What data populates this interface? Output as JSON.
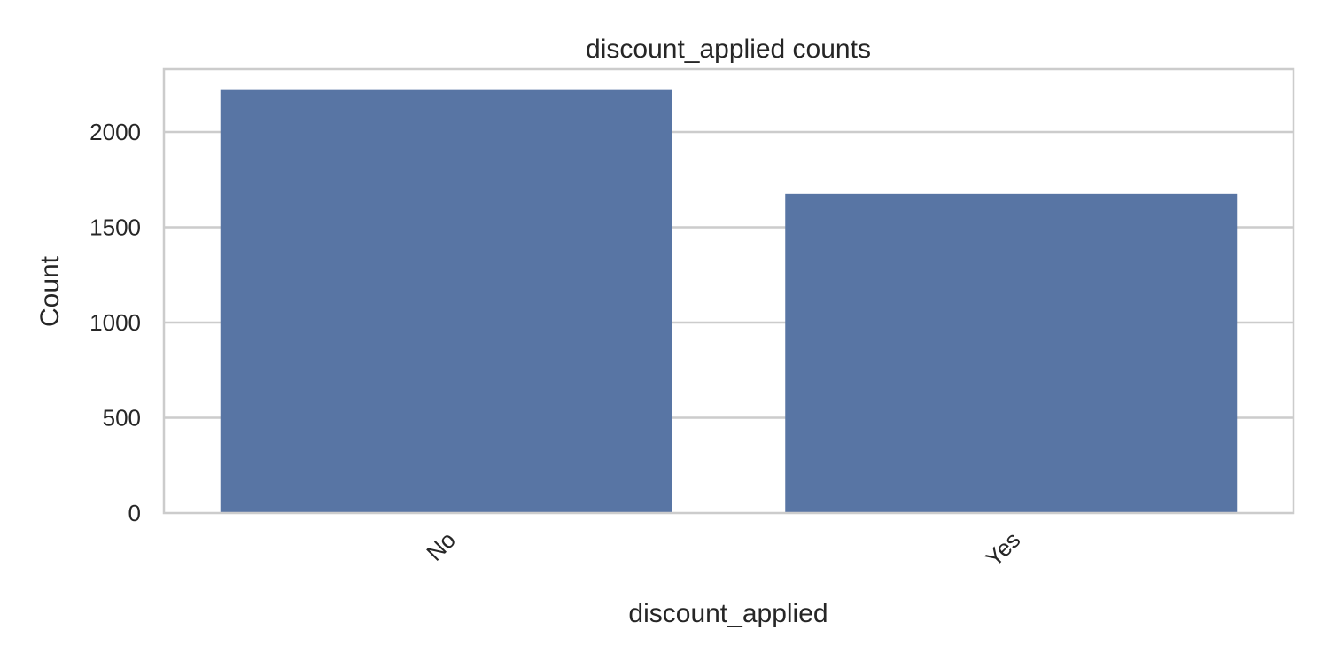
{
  "chart_data": {
    "type": "bar",
    "title": "discount_applied counts",
    "xlabel": "discount_applied",
    "ylabel": "Count",
    "categories": [
      "No",
      "Yes"
    ],
    "values": [
      2220,
      1675
    ],
    "ylim": [
      0,
      2330
    ],
    "yticks": [
      0,
      500,
      1000,
      1500,
      2000
    ],
    "ytick_labels": [
      "0",
      "500",
      "1000",
      "1500",
      "2000"
    ],
    "grid": true,
    "legend": "none",
    "colors": {
      "bar": "#5875a4",
      "grid": "#cccccc",
      "spine": "#cccccc",
      "text": "#262626"
    }
  }
}
